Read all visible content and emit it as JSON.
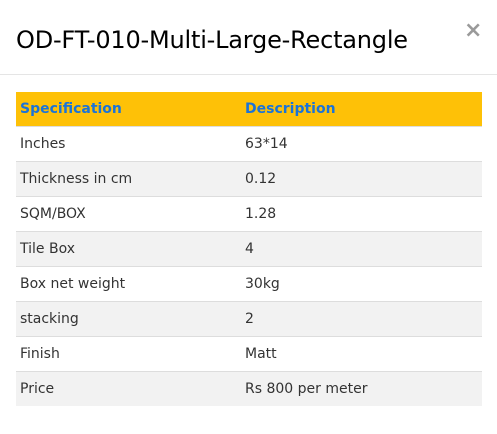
{
  "modal": {
    "title": "OD-FT-010-Multi-Large-Rectangle",
    "close_label": "×"
  },
  "table": {
    "headers": [
      "Specification",
      "Description"
    ],
    "rows": [
      [
        "Inches",
        "63*14"
      ],
      [
        "Thickness in cm",
        "0.12"
      ],
      [
        "SQM/BOX",
        "1.28"
      ],
      [
        "Tile Box",
        "4"
      ],
      [
        "Box net weight",
        "30kg"
      ],
      [
        "stacking",
        "2"
      ],
      [
        "Finish",
        "Matt"
      ],
      [
        "Price",
        "Rs 800 per meter"
      ]
    ]
  },
  "colors": {
    "header_bg": "#fec107",
    "header_text": "#1a73d9",
    "striped_row": "#f2f2f2"
  }
}
